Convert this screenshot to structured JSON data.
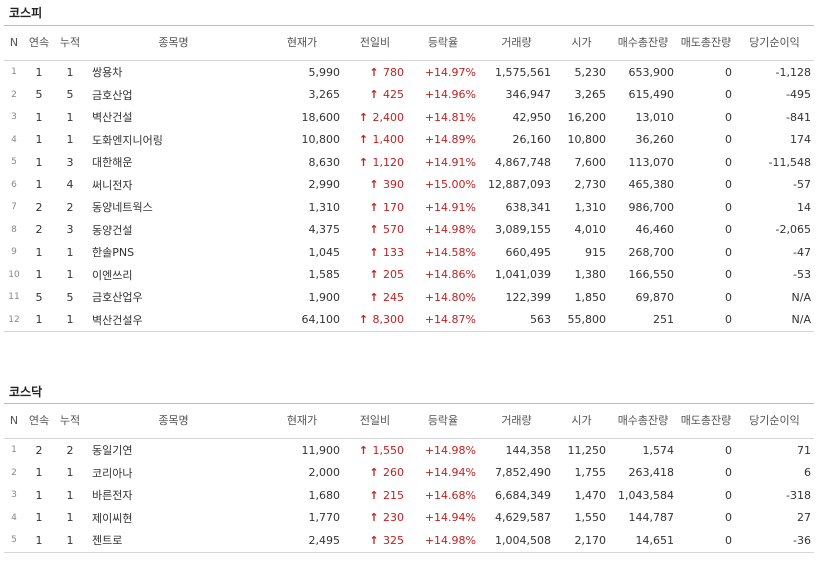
{
  "kospi": {
    "title": "코스피",
    "headers": [
      "N",
      "연속",
      "누적",
      "종목명",
      "현재가",
      "전일비",
      "등락율",
      "거래량",
      "시가",
      "매수총잔량",
      "매도총잔량",
      "당기순이익"
    ],
    "rows": [
      {
        "n": "1",
        "cont": "1",
        "cum": "1",
        "name": "쌍용차",
        "price": "5,990",
        "change": "780",
        "rate": "+14.97%",
        "volume": "1,575,561",
        "open": "5,230",
        "bid": "653,900",
        "ask": "0",
        "profit": "-1,128"
      },
      {
        "n": "2",
        "cont": "5",
        "cum": "5",
        "name": "금호산업",
        "price": "3,265",
        "change": "425",
        "rate": "+14.96%",
        "volume": "346,947",
        "open": "3,265",
        "bid": "615,490",
        "ask": "0",
        "profit": "-495"
      },
      {
        "n": "3",
        "cont": "1",
        "cum": "1",
        "name": "벽산건설",
        "price": "18,600",
        "change": "2,400",
        "rate": "+14.81%",
        "volume": "42,950",
        "open": "16,200",
        "bid": "13,010",
        "ask": "0",
        "profit": "-841"
      },
      {
        "n": "4",
        "cont": "1",
        "cum": "1",
        "name": "도화엔지니어링",
        "price": "10,800",
        "change": "1,400",
        "rate": "+14.89%",
        "volume": "26,160",
        "open": "10,800",
        "bid": "36,260",
        "ask": "0",
        "profit": "174"
      },
      {
        "n": "5",
        "cont": "1",
        "cum": "3",
        "name": "대한해운",
        "price": "8,630",
        "change": "1,120",
        "rate": "+14.91%",
        "volume": "4,867,748",
        "open": "7,600",
        "bid": "113,070",
        "ask": "0",
        "profit": "-11,548"
      },
      {
        "n": "6",
        "cont": "1",
        "cum": "4",
        "name": "써니전자",
        "price": "2,990",
        "change": "390",
        "rate": "+15.00%",
        "volume": "12,887,093",
        "open": "2,730",
        "bid": "465,380",
        "ask": "0",
        "profit": "-57"
      },
      {
        "n": "7",
        "cont": "2",
        "cum": "2",
        "name": "동양네트웍스",
        "price": "1,310",
        "change": "170",
        "rate": "+14.91%",
        "volume": "638,341",
        "open": "1,310",
        "bid": "986,700",
        "ask": "0",
        "profit": "14"
      },
      {
        "n": "8",
        "cont": "2",
        "cum": "3",
        "name": "동양건설",
        "price": "4,375",
        "change": "570",
        "rate": "+14.98%",
        "volume": "3,089,155",
        "open": "4,010",
        "bid": "46,460",
        "ask": "0",
        "profit": "-2,065"
      },
      {
        "n": "9",
        "cont": "1",
        "cum": "1",
        "name": "한솔PNS",
        "price": "1,045",
        "change": "133",
        "rate": "+14.58%",
        "volume": "660,495",
        "open": "915",
        "bid": "268,700",
        "ask": "0",
        "profit": "-47"
      },
      {
        "n": "10",
        "cont": "1",
        "cum": "1",
        "name": "이엔쓰리",
        "price": "1,585",
        "change": "205",
        "rate": "+14.86%",
        "volume": "1,041,039",
        "open": "1,380",
        "bid": "166,550",
        "ask": "0",
        "profit": "-53"
      },
      {
        "n": "11",
        "cont": "5",
        "cum": "5",
        "name": "금호산업우",
        "price": "1,900",
        "change": "245",
        "rate": "+14.80%",
        "volume": "122,399",
        "open": "1,850",
        "bid": "69,870",
        "ask": "0",
        "profit": "N/A"
      },
      {
        "n": "12",
        "cont": "1",
        "cum": "1",
        "name": "벽산건설우",
        "price": "64,100",
        "change": "8,300",
        "rate": "+14.87%",
        "volume": "563",
        "open": "55,800",
        "bid": "251",
        "ask": "0",
        "profit": "N/A"
      }
    ]
  },
  "kosdaq": {
    "title": "코스닥",
    "headers": [
      "N",
      "연속",
      "누적",
      "종목명",
      "현재가",
      "전일비",
      "등락율",
      "거래량",
      "시가",
      "매수총잔량",
      "매도총잔량",
      "당기순이익"
    ],
    "rows": [
      {
        "n": "1",
        "cont": "2",
        "cum": "2",
        "name": "동일기연",
        "price": "11,900",
        "change": "1,550",
        "rate": "+14.98%",
        "volume": "144,358",
        "open": "11,250",
        "bid": "1,574",
        "ask": "0",
        "profit": "71"
      },
      {
        "n": "2",
        "cont": "1",
        "cum": "1",
        "name": "코리아나",
        "price": "2,000",
        "change": "260",
        "rate": "+14.94%",
        "volume": "7,852,490",
        "open": "1,755",
        "bid": "263,418",
        "ask": "0",
        "profit": "6"
      },
      {
        "n": "3",
        "cont": "1",
        "cum": "1",
        "name": "바른전자",
        "price": "1,680",
        "change": "215",
        "rate": "+14.68%",
        "volume": "6,684,349",
        "open": "1,470",
        "bid": "1,043,584",
        "ask": "0",
        "profit": "-318"
      },
      {
        "n": "4",
        "cont": "1",
        "cum": "1",
        "name": "제이씨현",
        "price": "1,770",
        "change": "230",
        "rate": "+14.94%",
        "volume": "4,629,587",
        "open": "1,550",
        "bid": "144,787",
        "ask": "0",
        "profit": "27"
      },
      {
        "n": "5",
        "cont": "1",
        "cum": "1",
        "name": "젠트로",
        "price": "2,495",
        "change": "325",
        "rate": "+14.98%",
        "volume": "1,004,508",
        "open": "2,170",
        "bid": "14,651",
        "ask": "0",
        "profit": "-36"
      }
    ]
  },
  "style": {
    "up_color": "#c21f1f",
    "arrow_icon": "up-arrow-icon"
  }
}
